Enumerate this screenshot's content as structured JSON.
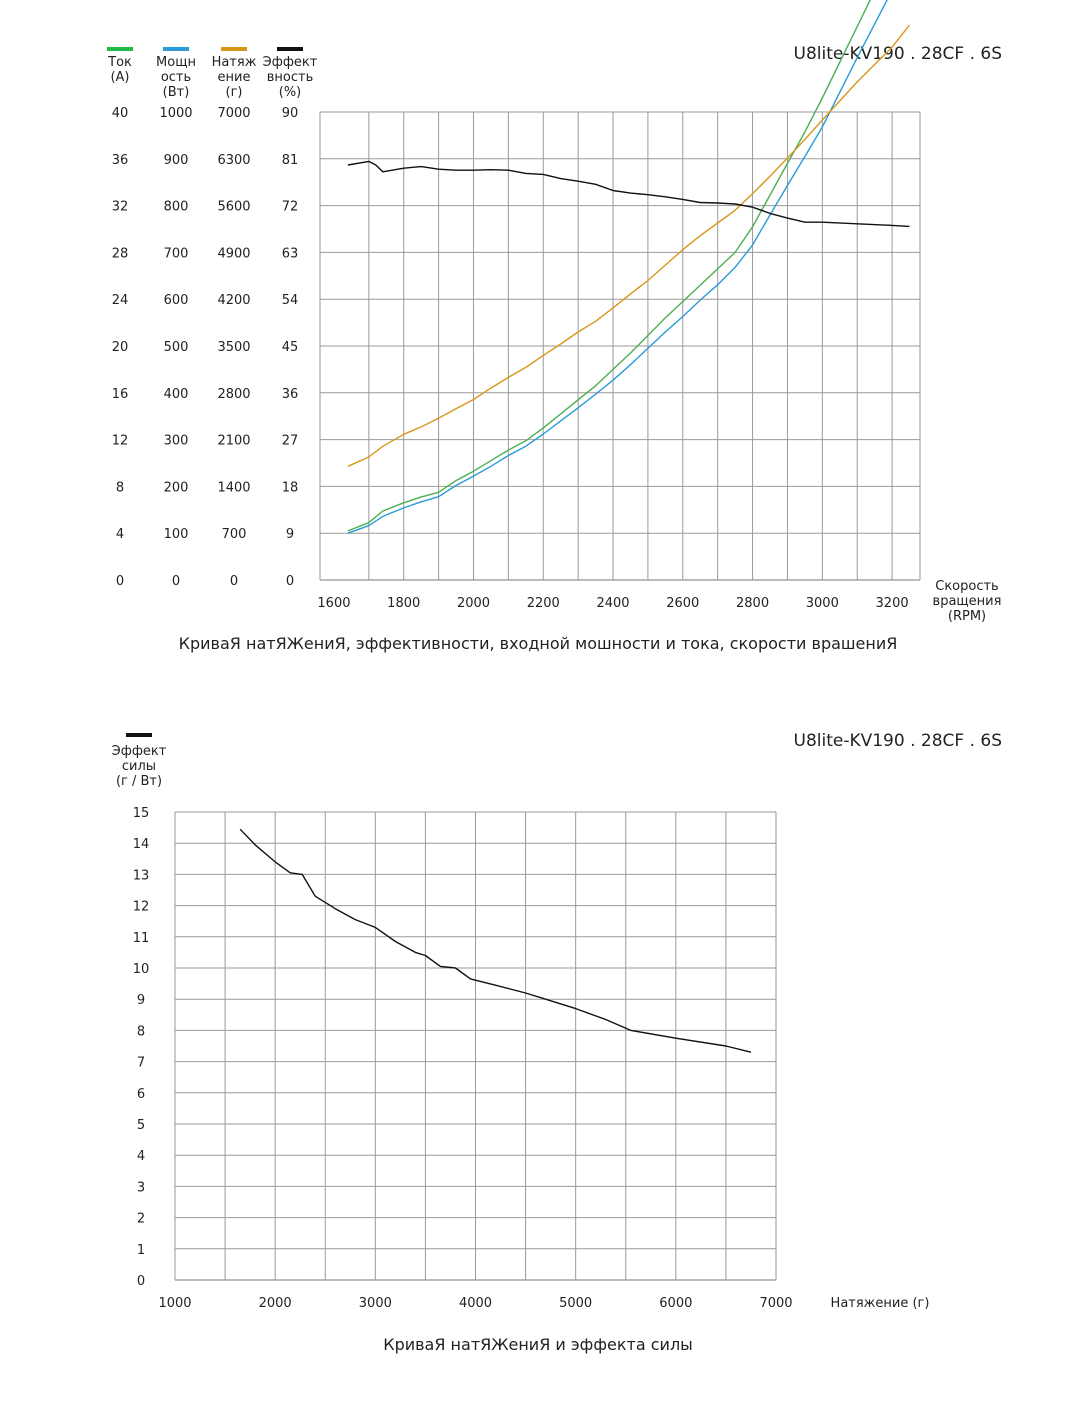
{
  "chart_data": [
    {
      "type": "line",
      "title": "U8lite-KV190 . 28CF . 6S",
      "caption": "КриваЯ натЯЖениЯ, эффективности, входной мошности и тока, скорости врашениЯ",
      "xlabel": [
        "Скорость",
        "вращения",
        "(RPM)"
      ],
      "xlim": [
        1560,
        3280
      ],
      "x_ticks": [
        "1600",
        "1800",
        "2000",
        "2200",
        "2400",
        "2600",
        "2800",
        "3000",
        "3200"
      ],
      "grid": true,
      "axes": [
        {
          "label": [
            "Ток",
            "(А)"
          ],
          "range": [
            0,
            40
          ],
          "ticks": [
            "0",
            "4",
            "8",
            "12",
            "16",
            "20",
            "24",
            "28",
            "32",
            "36",
            "40"
          ],
          "color": "#22b84a"
        },
        {
          "label": [
            "Мощн",
            "ость",
            "(Вт)"
          ],
          "range": [
            0,
            1000
          ],
          "ticks": [
            "0",
            "100",
            "200",
            "300",
            "400",
            "500",
            "600",
            "700",
            "800",
            "900",
            "1000"
          ],
          "color": "#2a9bd8"
        },
        {
          "label": [
            "Натяж",
            "ение",
            "(г)"
          ],
          "range": [
            0,
            7000
          ],
          "ticks": [
            "0",
            "700",
            "1400",
            "2100",
            "2800",
            "3500",
            "4200",
            "4900",
            "5600",
            "6300",
            "7000"
          ],
          "color": "#d9961c"
        },
        {
          "label": [
            "Эффект",
            "вность",
            "(%)"
          ],
          "range": [
            0,
            90
          ],
          "ticks": [
            "0",
            "9",
            "18",
            "27",
            "36",
            "45",
            "54",
            "63",
            "72",
            "81",
            "90"
          ],
          "color": "#111111"
        }
      ],
      "series": [
        {
          "axis": 0,
          "color": "#4caf50",
          "points": [
            [
              1640,
              4.2
            ],
            [
              1700,
              4.9
            ],
            [
              1740,
              5.9
            ],
            [
              1800,
              6.6
            ],
            [
              1850,
              7.1
            ],
            [
              1900,
              7.5
            ],
            [
              1950,
              8.5
            ],
            [
              2000,
              9.3
            ],
            [
              2050,
              10.2
            ],
            [
              2100,
              11.1
            ],
            [
              2150,
              11.9
            ],
            [
              2200,
              13.0
            ],
            [
              2250,
              14.2
            ],
            [
              2300,
              15.4
            ],
            [
              2350,
              16.6
            ],
            [
              2400,
              18.0
            ],
            [
              2450,
              19.4
            ],
            [
              2500,
              20.9
            ],
            [
              2550,
              22.4
            ],
            [
              2600,
              23.8
            ],
            [
              2650,
              25.2
            ],
            [
              2700,
              26.6
            ],
            [
              2750,
              28.0
            ],
            [
              2800,
              30.2
            ],
            [
              2850,
              32.9
            ],
            [
              2900,
              35.6
            ],
            [
              2950,
              38.3
            ],
            [
              3000,
              41.2
            ],
            [
              3100,
              47.3
            ],
            [
              3200,
              53.4
            ],
            [
              3250,
              56.6
            ]
          ]
        },
        {
          "axis": 1,
          "color": "#2a9bd8",
          "points": [
            [
              1640,
              100
            ],
            [
              1700,
              116
            ],
            [
              1740,
              136
            ],
            [
              1800,
              154
            ],
            [
              1850,
              167
            ],
            [
              1900,
              178
            ],
            [
              1950,
              202
            ],
            [
              2000,
              222
            ],
            [
              2050,
              243
            ],
            [
              2100,
              266
            ],
            [
              2150,
              286
            ],
            [
              2200,
              312
            ],
            [
              2250,
              340
            ],
            [
              2300,
              368
            ],
            [
              2350,
              397
            ],
            [
              2400,
              427
            ],
            [
              2450,
              460
            ],
            [
              2500,
              495
            ],
            [
              2550,
              530
            ],
            [
              2600,
              563
            ],
            [
              2650,
              598
            ],
            [
              2700,
              631
            ],
            [
              2750,
              668
            ],
            [
              2800,
              716
            ],
            [
              2850,
              780
            ],
            [
              2900,
              843
            ],
            [
              2950,
              905
            ],
            [
              3000,
              968
            ],
            [
              3100,
              1116
            ],
            [
              3200,
              1260
            ],
            [
              3250,
              1346
            ]
          ]
        },
        {
          "axis": 2,
          "color": "#d9961c",
          "points": [
            [
              1640,
              1700
            ],
            [
              1700,
              1840
            ],
            [
              1740,
              2000
            ],
            [
              1800,
              2180
            ],
            [
              1850,
              2290
            ],
            [
              1900,
              2420
            ],
            [
              1950,
              2560
            ],
            [
              2000,
              2700
            ],
            [
              2050,
              2870
            ],
            [
              2100,
              3030
            ],
            [
              2150,
              3180
            ],
            [
              2200,
              3360
            ],
            [
              2250,
              3530
            ],
            [
              2300,
              3710
            ],
            [
              2350,
              3870
            ],
            [
              2400,
              4070
            ],
            [
              2450,
              4280
            ],
            [
              2500,
              4480
            ],
            [
              2550,
              4710
            ],
            [
              2600,
              4940
            ],
            [
              2650,
              5150
            ],
            [
              2700,
              5340
            ],
            [
              2750,
              5530
            ],
            [
              2800,
              5780
            ],
            [
              2850,
              6040
            ],
            [
              2900,
              6310
            ],
            [
              2950,
              6590
            ],
            [
              3000,
              6880
            ],
            [
              3100,
              7450
            ],
            [
              3200,
              7970
            ],
            [
              3250,
              8300
            ]
          ]
        },
        {
          "axis": 3,
          "color": "#111111",
          "points": [
            [
              1640,
              79.8
            ],
            [
              1700,
              80.5
            ],
            [
              1720,
              79.8
            ],
            [
              1740,
              78.5
            ],
            [
              1800,
              79.2
            ],
            [
              1850,
              79.5
            ],
            [
              1900,
              79.0
            ],
            [
              1950,
              78.8
            ],
            [
              2000,
              78.8
            ],
            [
              2050,
              78.9
            ],
            [
              2100,
              78.8
            ],
            [
              2150,
              78.2
            ],
            [
              2200,
              78.0
            ],
            [
              2250,
              77.2
            ],
            [
              2300,
              76.7
            ],
            [
              2350,
              76.1
            ],
            [
              2400,
              74.9
            ],
            [
              2450,
              74.4
            ],
            [
              2500,
              74.1
            ],
            [
              2550,
              73.7
            ],
            [
              2600,
              73.2
            ],
            [
              2650,
              72.6
            ],
            [
              2700,
              72.5
            ],
            [
              2750,
              72.3
            ],
            [
              2800,
              71.7
            ],
            [
              2850,
              70.5
            ],
            [
              2900,
              69.6
            ],
            [
              2950,
              68.8
            ],
            [
              3000,
              68.8
            ],
            [
              3100,
              68.5
            ],
            [
              3200,
              68.2
            ],
            [
              3250,
              68.0
            ]
          ]
        }
      ]
    },
    {
      "type": "line",
      "title": "U8lite-KV190 . 28CF . 6S",
      "caption": "КриваЯ натЯЖениЯ и эффекта силы",
      "xlabel": "Натяжение  (г)",
      "ylabel": [
        "Эффект",
        "силы",
        "(г / Вт)"
      ],
      "xlim": [
        1000,
        7000
      ],
      "ylim": [
        0,
        15
      ],
      "x_ticks": [
        "1000",
        "2000",
        "3000",
        "4000",
        "5000",
        "6000",
        "7000"
      ],
      "y_ticks": [
        "0",
        "1",
        "2",
        "3",
        "4",
        "5",
        "6",
        "7",
        "8",
        "9",
        "10",
        "11",
        "12",
        "13",
        "14",
        "15"
      ],
      "grid": true,
      "series": [
        {
          "color": "#111111",
          "points": [
            [
              1650,
              14.45
            ],
            [
              1800,
              13.95
            ],
            [
              2000,
              13.4
            ],
            [
              2150,
              13.05
            ],
            [
              2270,
              13.0
            ],
            [
              2400,
              12.3
            ],
            [
              2600,
              11.9
            ],
            [
              2800,
              11.55
            ],
            [
              3000,
              11.3
            ],
            [
              3200,
              10.85
            ],
            [
              3400,
              10.5
            ],
            [
              3500,
              10.4
            ],
            [
              3650,
              10.05
            ],
            [
              3800,
              10.0
            ],
            [
              3950,
              9.65
            ],
            [
              4200,
              9.45
            ],
            [
              4500,
              9.2
            ],
            [
              4700,
              9.0
            ],
            [
              5000,
              8.7
            ],
            [
              5300,
              8.35
            ],
            [
              5550,
              8.0
            ],
            [
              6000,
              7.75
            ],
            [
              6500,
              7.5
            ],
            [
              6750,
              7.3
            ]
          ]
        }
      ]
    }
  ]
}
